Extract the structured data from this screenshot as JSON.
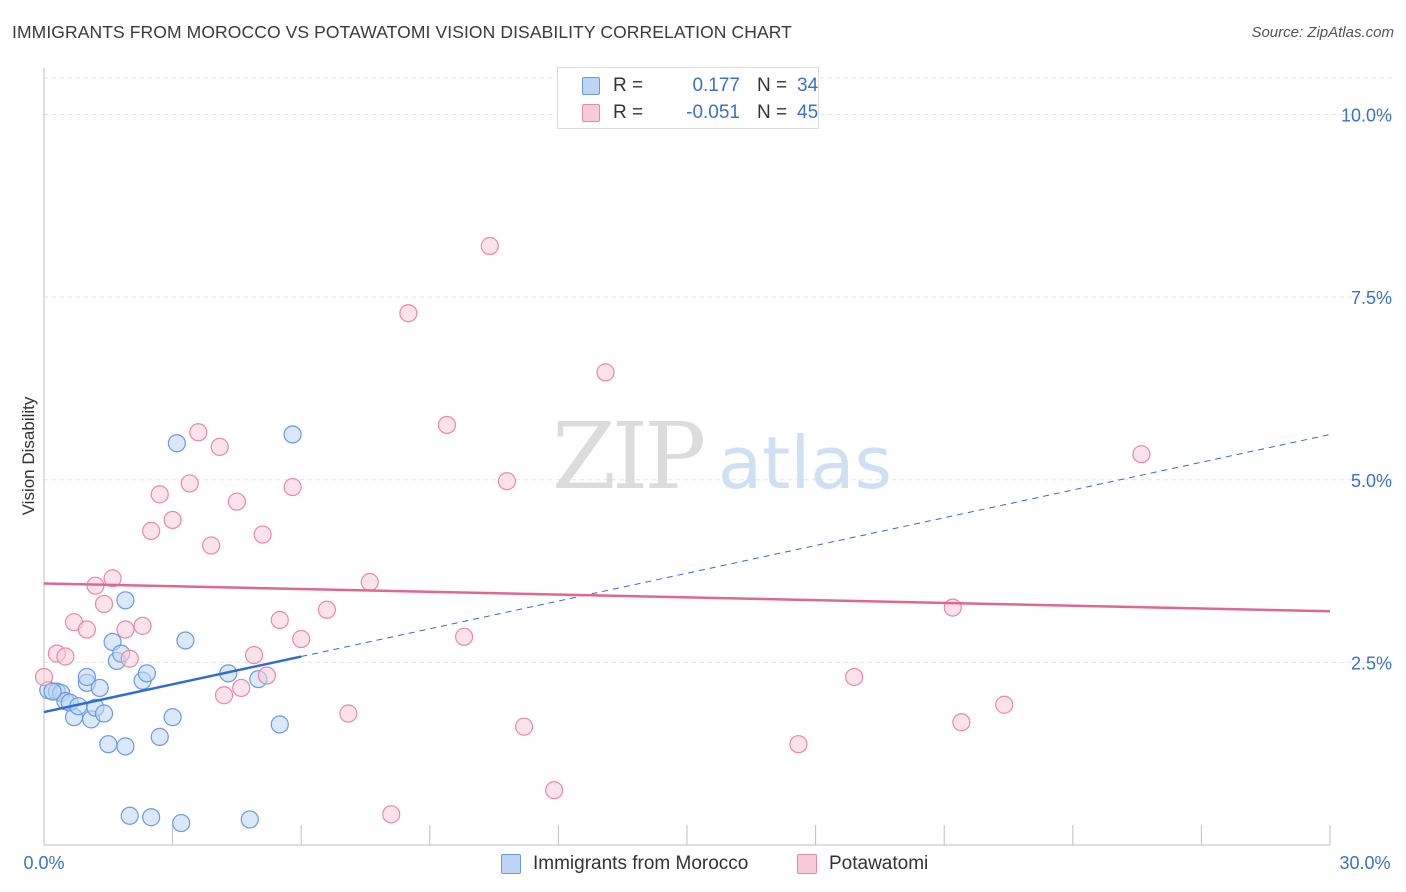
{
  "chart_data": {
    "type": "scatter",
    "title": "IMMIGRANTS FROM MOROCCO VS POTAWATOMI VISION DISABILITY CORRELATION CHART",
    "source": "Source: ZipAtlas.com",
    "ylabel": "Vision Disability",
    "xlabel": "",
    "xlim": [
      0,
      30
    ],
    "ylim": [
      0,
      10.5
    ],
    "x_tick_labels": [
      "0.0%",
      "30.0%"
    ],
    "y_ticks": [
      2.5,
      5.0,
      7.5,
      10.0
    ],
    "y_tick_labels": [
      "2.5%",
      "5.0%",
      "7.5%",
      "10.0%"
    ],
    "grid": true,
    "watermark": {
      "part1": "ZIP",
      "part2": "atlas"
    },
    "legend": {
      "r_label": "R =",
      "n_label": "N =",
      "entries": [
        {
          "r": "0.177",
          "n": "34"
        },
        {
          "r": "-0.051",
          "n": "45"
        }
      ]
    },
    "series": [
      {
        "name": "Immigrants from Morocco",
        "color": "#6b9ae0",
        "fill": "#bcd5f5",
        "trend_color": "#2f6ccf",
        "trend": {
          "x0": 0,
          "y0": 1.82,
          "x1": 6.0,
          "y1": 2.58,
          "dash_to_x": 30,
          "dash_to_y": 5.62
        },
        "points": [
          [
            0.1,
            2.12
          ],
          [
            0.3,
            2.1
          ],
          [
            0.4,
            2.08
          ],
          [
            0.5,
            1.97
          ],
          [
            0.6,
            1.95
          ],
          [
            0.7,
            1.75
          ],
          [
            0.8,
            1.9
          ],
          [
            1.0,
            2.22
          ],
          [
            1.0,
            2.3
          ],
          [
            1.1,
            1.72
          ],
          [
            1.2,
            1.88
          ],
          [
            1.3,
            2.15
          ],
          [
            1.4,
            1.8
          ],
          [
            1.5,
            1.38
          ],
          [
            1.6,
            2.78
          ],
          [
            1.7,
            2.52
          ],
          [
            1.8,
            2.62
          ],
          [
            1.9,
            3.35
          ],
          [
            1.9,
            1.35
          ],
          [
            2.0,
            0.4
          ],
          [
            2.3,
            2.25
          ],
          [
            2.4,
            2.35
          ],
          [
            2.5,
            0.38
          ],
          [
            2.7,
            1.48
          ],
          [
            3.0,
            1.75
          ],
          [
            3.1,
            5.5
          ],
          [
            3.2,
            0.3
          ],
          [
            3.3,
            2.8
          ],
          [
            4.3,
            2.35
          ],
          [
            4.8,
            0.35
          ],
          [
            5.0,
            2.27
          ],
          [
            5.5,
            1.65
          ],
          [
            5.8,
            5.62
          ],
          [
            0.2,
            2.1
          ]
        ]
      },
      {
        "name": "Potawatomi",
        "color": "#e58aa6",
        "fill": "#f9cbd8",
        "trend_color": "#e06890",
        "trend": {
          "x0": 0,
          "y0": 3.58,
          "x1": 30,
          "y1": 3.2
        },
        "points": [
          [
            0.0,
            2.3
          ],
          [
            0.3,
            2.62
          ],
          [
            0.5,
            2.58
          ],
          [
            0.7,
            3.05
          ],
          [
            1.0,
            2.95
          ],
          [
            1.2,
            3.55
          ],
          [
            1.4,
            3.3
          ],
          [
            1.6,
            3.65
          ],
          [
            1.9,
            2.95
          ],
          [
            2.0,
            2.55
          ],
          [
            2.3,
            3.0
          ],
          [
            2.5,
            4.3
          ],
          [
            2.7,
            4.8
          ],
          [
            3.0,
            4.45
          ],
          [
            3.4,
            4.95
          ],
          [
            3.6,
            5.65
          ],
          [
            3.9,
            4.1
          ],
          [
            4.1,
            5.45
          ],
          [
            4.2,
            2.05
          ],
          [
            4.5,
            4.7
          ],
          [
            4.6,
            2.15
          ],
          [
            4.9,
            2.6
          ],
          [
            5.1,
            4.25
          ],
          [
            5.2,
            2.32
          ],
          [
            5.5,
            3.08
          ],
          [
            5.8,
            4.9
          ],
          [
            6.0,
            2.82
          ],
          [
            6.6,
            3.22
          ],
          [
            7.1,
            1.8
          ],
          [
            7.6,
            3.6
          ],
          [
            8.1,
            0.42
          ],
          [
            8.5,
            7.28
          ],
          [
            9.4,
            5.75
          ],
          [
            9.8,
            2.85
          ],
          [
            10.4,
            8.2
          ],
          [
            10.8,
            4.98
          ],
          [
            11.2,
            1.62
          ],
          [
            11.9,
            0.75
          ],
          [
            13.1,
            6.47
          ],
          [
            17.6,
            1.38
          ],
          [
            18.9,
            2.3
          ],
          [
            21.2,
            3.25
          ],
          [
            21.4,
            1.68
          ],
          [
            22.4,
            1.92
          ],
          [
            25.6,
            5.35
          ]
        ]
      }
    ]
  }
}
